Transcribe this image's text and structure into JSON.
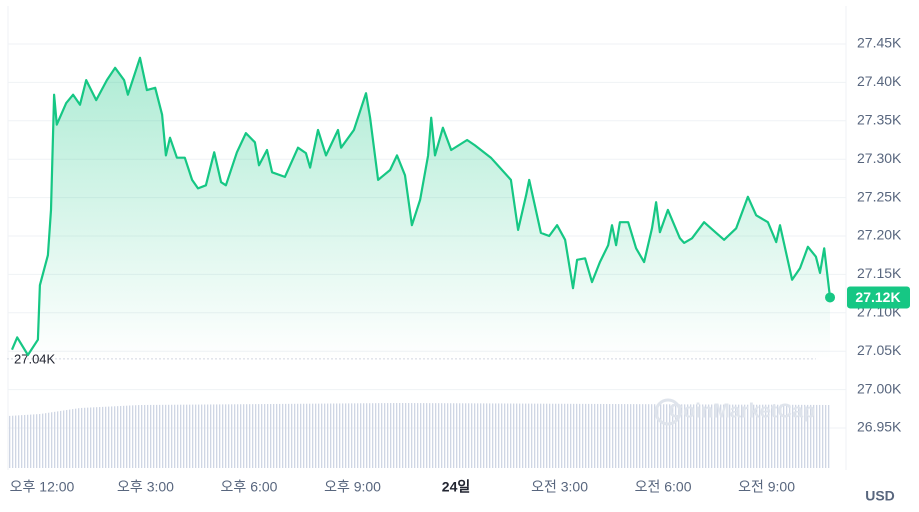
{
  "chart_data": {
    "type": "line",
    "x": [
      -0.87,
      -0.72,
      -0.41,
      -0.12,
      -0.06,
      0.17,
      0.26,
      0.35,
      0.43,
      0.7,
      0.9,
      1.1,
      1.28,
      1.57,
      1.88,
      2.12,
      2.38,
      2.49,
      2.84,
      3.04,
      3.28,
      3.48,
      3.59,
      3.71,
      3.91,
      4.14,
      4.35,
      4.52,
      4.75,
      4.99,
      5.19,
      5.33,
      5.65,
      5.91,
      6.17,
      6.29,
      6.52,
      6.67,
      7.04,
      7.42,
      7.65,
      7.77,
      8.0,
      8.23,
      8.58,
      8.67,
      9.04,
      9.39,
      9.51,
      9.74,
      10.09,
      10.29,
      10.52,
      10.72,
      10.96,
      11.19,
      11.28,
      11.39,
      11.62,
      11.86,
      12.32,
      12.55,
      13.01,
      13.25,
      13.59,
      13.8,
      14.03,
      14.12,
      14.46,
      14.7,
      14.93,
      15.16,
      15.39,
      15.51,
      15.74,
      15.94,
      16.17,
      16.41,
      16.52,
      16.64,
      16.75,
      16.99,
      17.22,
      17.45,
      17.68,
      17.8,
      17.91,
      18.14,
      18.49,
      18.61,
      18.84,
      19.19,
      19.54,
      19.77,
      20.12,
      20.46,
      20.7,
      21.04,
      21.28,
      21.39,
      21.74,
      21.97,
      22.2,
      22.43,
      22.55,
      22.67,
      22.84
    ],
    "series": [
      {
        "name": "USD",
        "color": "#16c784",
        "values": [
          27.052,
          27.068,
          27.045,
          27.065,
          27.136,
          27.175,
          27.234,
          27.384,
          27.345,
          27.373,
          27.384,
          27.371,
          27.403,
          27.377,
          27.403,
          27.419,
          27.403,
          27.384,
          27.432,
          27.39,
          27.393,
          27.358,
          27.305,
          27.328,
          27.302,
          27.302,
          27.273,
          27.262,
          27.266,
          27.309,
          27.27,
          27.266,
          27.309,
          27.334,
          27.322,
          27.292,
          27.312,
          27.283,
          27.277,
          27.315,
          27.308,
          27.289,
          27.338,
          27.305,
          27.338,
          27.315,
          27.338,
          27.386,
          27.354,
          27.273,
          27.286,
          27.305,
          27.279,
          27.214,
          27.247,
          27.305,
          27.354,
          27.305,
          27.341,
          27.312,
          27.325,
          27.318,
          27.302,
          27.29,
          27.273,
          27.208,
          27.253,
          27.273,
          27.204,
          27.2,
          27.214,
          27.195,
          27.132,
          27.169,
          27.171,
          27.14,
          27.166,
          27.188,
          27.214,
          27.188,
          27.218,
          27.218,
          27.184,
          27.166,
          27.21,
          27.244,
          27.205,
          27.234,
          27.197,
          27.191,
          27.197,
          27.218,
          27.204,
          27.195,
          27.21,
          27.251,
          27.227,
          27.218,
          27.192,
          27.214,
          27.143,
          27.158,
          27.186,
          27.173,
          27.152,
          27.184,
          27.12
        ]
      }
    ],
    "xlim": [
      -1,
      23.3
    ],
    "xticks": [
      {
        "value": 0,
        "label": "오후 12:00"
      },
      {
        "value": 3,
        "label": "오후 3:00"
      },
      {
        "value": 6,
        "label": "오후 6:00"
      },
      {
        "value": 9,
        "label": "오후 9:00"
      },
      {
        "value": 12,
        "label": "24일"
      },
      {
        "value": 15,
        "label": "오전 3:00"
      },
      {
        "value": 18,
        "label": "오전 6:00"
      },
      {
        "value": 21,
        "label": "오전 9:00"
      }
    ],
    "ylim": [
      26.9,
      27.5
    ],
    "yticks": [
      {
        "value": 26.95,
        "label": "26.95K"
      },
      {
        "value": 27.0,
        "label": "27.00K"
      },
      {
        "value": 27.05,
        "label": "27.05K"
      },
      {
        "value": 27.1,
        "label": "27.10K"
      },
      {
        "value": 27.15,
        "label": "27.15K"
      },
      {
        "value": 27.2,
        "label": "27.20K"
      },
      {
        "value": 27.25,
        "label": "27.25K"
      },
      {
        "value": 27.3,
        "label": "27.30K"
      },
      {
        "value": 27.35,
        "label": "27.35K"
      },
      {
        "value": 27.4,
        "label": "27.40K"
      },
      {
        "value": 27.45,
        "label": "27.45K"
      }
    ],
    "grid": true,
    "baseline": {
      "value": 27.04,
      "label": "27.04K"
    },
    "current_price": {
      "value": 27.12,
      "label": "27.12K"
    },
    "y_unit": "USD",
    "watermark": "CoinMarketCap"
  }
}
